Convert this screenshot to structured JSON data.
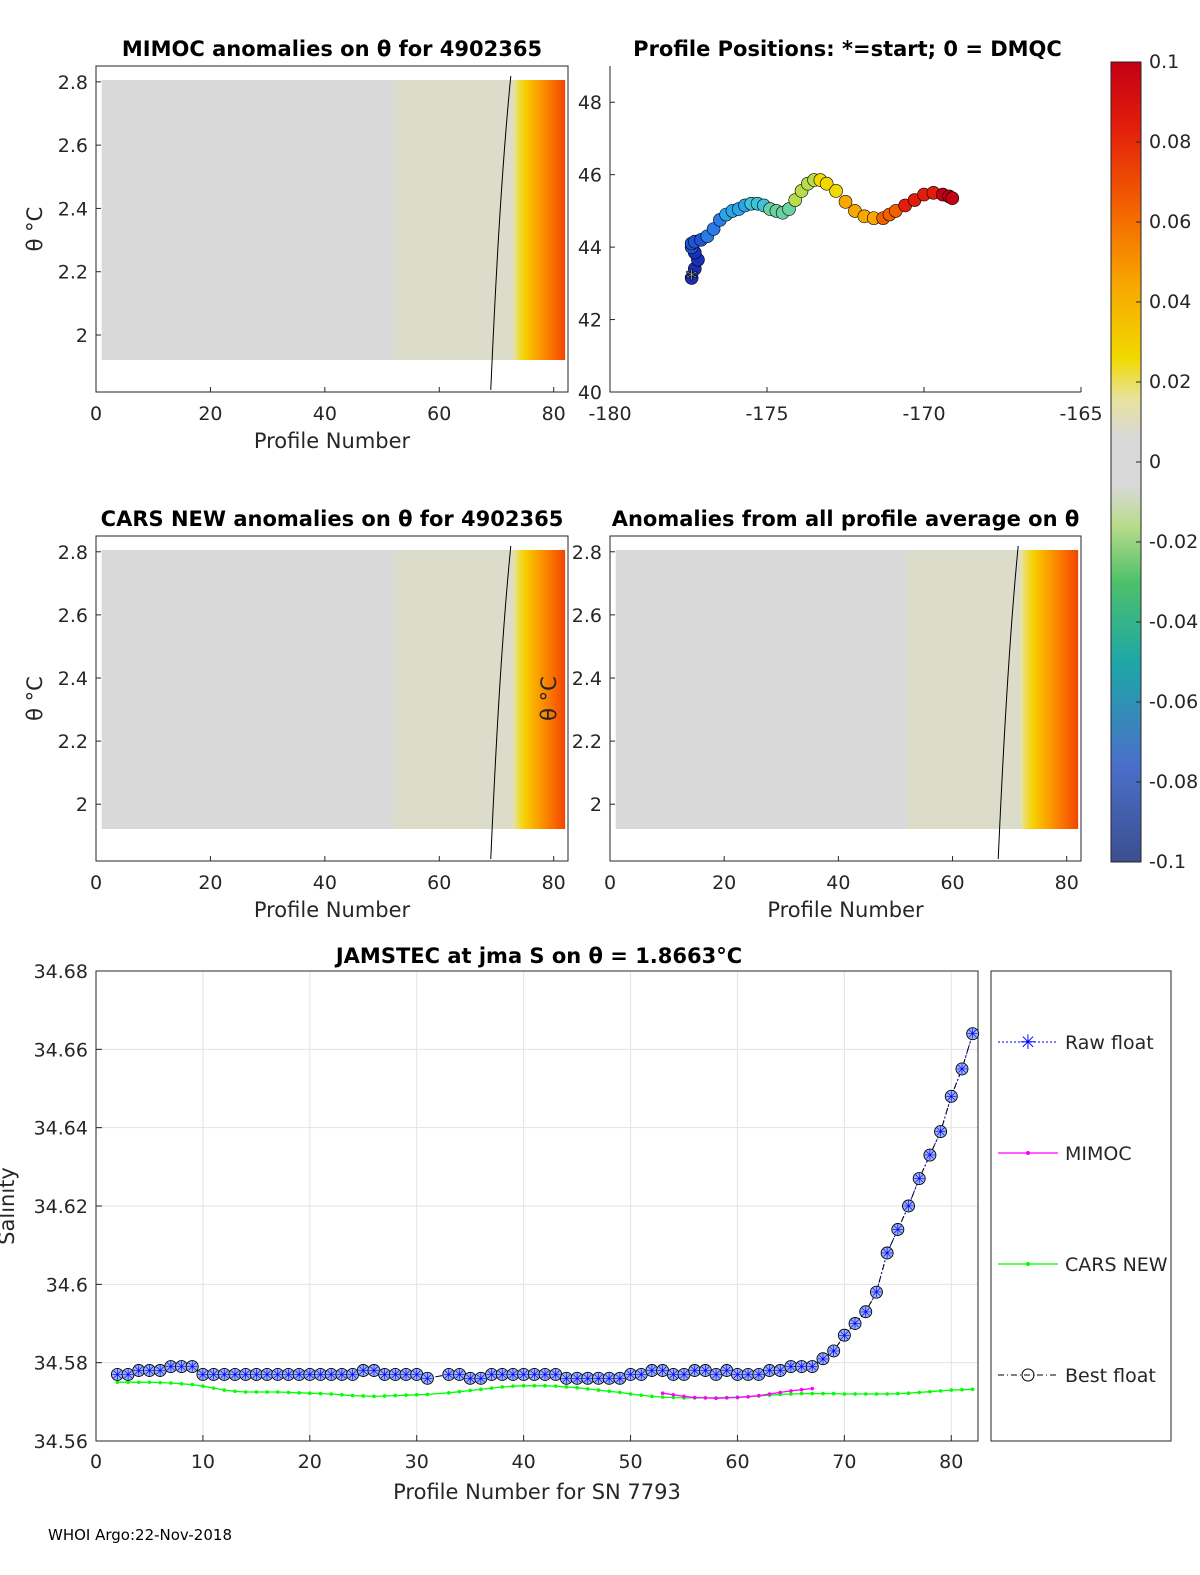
{
  "footer": "WHOI Argo:22-Nov-2018",
  "colors": {
    "raw": "#0000ff",
    "mimoc": "#ff00ff",
    "cars": "#00ff00",
    "best": "#000000",
    "field_gray": "#d9d9d9"
  },
  "chart_data": [
    {
      "id": "mimoc",
      "type": "heatmap",
      "title": "MIMOC anomalies on θ  for 4902365",
      "xlabel": "Profile Number",
      "ylabel": "θ °C",
      "xlim": [
        0,
        82.5
      ],
      "ylim": [
        1.82,
        2.85
      ],
      "xticks": [
        "0",
        "20",
        "40",
        "60",
        "80"
      ],
      "yticks": [
        "2",
        "2.2",
        "2.4",
        "2.6",
        "2.8"
      ],
      "gradient_start_profile": 73
    },
    {
      "id": "positions",
      "type": "scatter",
      "title": "Profile Positions: *=start; 0 = DMQC",
      "xlim": [
        -180,
        -165
      ],
      "ylim": [
        40,
        49
      ],
      "xticks": [
        "-180",
        "-175",
        "-170",
        "-165"
      ],
      "yticks": [
        "40",
        "42",
        "44",
        "46",
        "48"
      ],
      "lon": [
        -177.4,
        -177.3,
        -177.2,
        -177.3,
        -177.4,
        -177.4,
        -177.3,
        -177.1,
        -176.9,
        -176.7,
        -176.5,
        -176.3,
        -176.1,
        -175.9,
        -175.7,
        -175.5,
        -175.3,
        -175.1,
        -174.9,
        -174.7,
        -174.5,
        -174.3,
        -174.1,
        -173.9,
        -173.7,
        -173.5,
        -173.3,
        -173.1,
        -172.8,
        -172.5,
        -172.2,
        -171.9,
        -171.6,
        -171.3,
        -171.1,
        -170.9,
        -170.6,
        -170.3,
        -170.0,
        -169.7,
        -169.4,
        -169.2,
        -169.1
      ],
      "lat": [
        43.15,
        43.4,
        43.65,
        43.85,
        44.0,
        44.1,
        44.15,
        44.2,
        44.3,
        44.5,
        44.75,
        44.9,
        45.0,
        45.05,
        45.15,
        45.2,
        45.2,
        45.15,
        45.05,
        45.0,
        44.95,
        45.05,
        45.3,
        45.55,
        45.75,
        45.85,
        45.85,
        45.75,
        45.55,
        45.25,
        45.0,
        44.85,
        44.8,
        44.8,
        44.9,
        45.0,
        45.15,
        45.3,
        45.45,
        45.5,
        45.45,
        45.4,
        45.35
      ],
      "start_marker": "*"
    },
    {
      "id": "cars",
      "type": "heatmap",
      "title": "CARS NEW anomalies on θ for 4902365",
      "xlabel": "Profile Number",
      "ylabel": "θ °C",
      "xlim": [
        0,
        82.5
      ],
      "ylim": [
        1.82,
        2.85
      ],
      "xticks": [
        "0",
        "20",
        "40",
        "60",
        "80"
      ],
      "yticks": [
        "2",
        "2.2",
        "2.4",
        "2.6",
        "2.8"
      ],
      "gradient_start_profile": 73
    },
    {
      "id": "allavg",
      "type": "heatmap",
      "title": "Anomalies from all profile average on θ",
      "xlabel": "Profile Number",
      "ylabel": "θ °C",
      "xlim": [
        0,
        82.5
      ],
      "ylim": [
        1.82,
        2.85
      ],
      "xticks": [
        "0",
        "20",
        "40",
        "60",
        "80"
      ],
      "yticks": [
        "2",
        "2.2",
        "2.4",
        "2.6",
        "2.8"
      ],
      "gradient_start_profile": 72
    },
    {
      "id": "colorbar",
      "type": "colorbar",
      "range": [
        -0.1,
        0.1
      ],
      "ticks": [
        "0.1",
        "0.08",
        "0.06",
        "0.04",
        "0.02",
        "0",
        "-0.02",
        "-0.04",
        "-0.06",
        "-0.08",
        "-0.1"
      ],
      "tick_values": [
        0.1,
        0.08,
        0.06,
        0.04,
        0.02,
        0,
        -0.02,
        -0.04,
        -0.06,
        -0.08,
        -0.1
      ]
    },
    {
      "id": "salinity",
      "type": "line",
      "title": "JAMSTEC at jma S on θ = 1.8663°C",
      "xlabel": "Profile Number for SN 7793",
      "ylabel": "Salinity",
      "xlim": [
        0,
        82.5
      ],
      "ylim": [
        34.56,
        34.68
      ],
      "xticks": [
        "0",
        "10",
        "20",
        "30",
        "40",
        "50",
        "60",
        "70",
        "80"
      ],
      "yticks": [
        "34.56",
        "34.58",
        "34.6",
        "34.62",
        "34.64",
        "34.66",
        "34.68"
      ],
      "grid": true,
      "legend": [
        "Raw float",
        "MIMOC",
        "CARS NEW",
        "Best float"
      ],
      "legend_position": "outside-right",
      "x": [
        2,
        3,
        4,
        5,
        6,
        7,
        8,
        9,
        10,
        11,
        12,
        13,
        14,
        15,
        16,
        17,
        18,
        19,
        20,
        21,
        22,
        23,
        24,
        25,
        26,
        27,
        28,
        29,
        30,
        31,
        33,
        34,
        35,
        36,
        37,
        38,
        39,
        40,
        41,
        42,
        43,
        44,
        45,
        46,
        47,
        48,
        49,
        50,
        51,
        52,
        53,
        54,
        55,
        56,
        57,
        58,
        59,
        60,
        61,
        62,
        63,
        64,
        65,
        66,
        67,
        68,
        69,
        70,
        71,
        72,
        73,
        74,
        75,
        76,
        77,
        78,
        79,
        80,
        81,
        82
      ],
      "series": [
        {
          "name": "Raw float",
          "values": [
            34.577,
            34.577,
            34.578,
            34.578,
            34.578,
            34.579,
            34.579,
            34.579,
            34.577,
            34.577,
            34.577,
            34.577,
            34.577,
            34.577,
            34.577,
            34.577,
            34.577,
            34.577,
            34.577,
            34.577,
            34.577,
            34.577,
            34.577,
            34.578,
            34.578,
            34.577,
            34.577,
            34.577,
            34.577,
            34.576,
            34.577,
            34.577,
            34.576,
            34.576,
            34.577,
            34.577,
            34.577,
            34.577,
            34.577,
            34.577,
            34.577,
            34.576,
            34.576,
            34.576,
            34.576,
            34.576,
            34.576,
            34.577,
            34.577,
            34.578,
            34.578,
            34.577,
            34.577,
            34.578,
            34.578,
            34.577,
            34.578,
            34.577,
            34.577,
            34.577,
            34.578,
            34.578,
            34.579,
            34.579,
            34.579,
            34.581,
            34.583,
            34.587,
            34.59,
            34.593,
            34.598,
            34.608,
            34.614,
            34.62,
            34.627,
            34.633,
            34.639,
            34.648,
            34.655,
            34.664
          ]
        },
        {
          "name": "Best float",
          "values": [
            34.577,
            34.577,
            34.578,
            34.578,
            34.578,
            34.579,
            34.579,
            34.579,
            34.577,
            34.577,
            34.577,
            34.577,
            34.577,
            34.577,
            34.577,
            34.577,
            34.577,
            34.577,
            34.577,
            34.577,
            34.577,
            34.577,
            34.577,
            34.578,
            34.578,
            34.577,
            34.577,
            34.577,
            34.577,
            34.576,
            34.577,
            34.577,
            34.576,
            34.576,
            34.577,
            34.577,
            34.577,
            34.577,
            34.577,
            34.577,
            34.577,
            34.576,
            34.576,
            34.576,
            34.576,
            34.576,
            34.576,
            34.577,
            34.577,
            34.578,
            34.578,
            34.577,
            34.577,
            34.578,
            34.578,
            34.577,
            34.578,
            34.577,
            34.577,
            34.577,
            34.578,
            34.578,
            34.579,
            34.579,
            34.579,
            34.581,
            34.583,
            34.587,
            34.59,
            34.593,
            34.598,
            34.608,
            34.614,
            34.62,
            34.627,
            34.633,
            34.639,
            34.648,
            34.655,
            34.664
          ]
        },
        {
          "name": "MIMOC",
          "x": [
            53,
            54,
            55,
            56,
            57,
            58,
            59,
            60,
            61,
            62,
            63,
            64,
            65,
            66,
            67
          ],
          "values": [
            34.5722,
            34.5718,
            34.5714,
            34.5711,
            34.571,
            34.5709,
            34.571,
            34.5711,
            34.5713,
            34.5716,
            34.572,
            34.5724,
            34.5728,
            34.5731,
            34.5734
          ]
        },
        {
          "name": "CARS NEW",
          "values": [
            34.575,
            34.575,
            34.575,
            34.575,
            34.5749,
            34.5748,
            34.5746,
            34.5744,
            34.574,
            34.5735,
            34.573,
            34.5727,
            34.5725,
            34.5725,
            34.5725,
            34.5725,
            34.5724,
            34.5723,
            34.5722,
            34.5721,
            34.572,
            34.5718,
            34.5716,
            34.5715,
            34.5714,
            34.5715,
            34.5716,
            34.5717,
            34.5718,
            34.5719,
            34.5723,
            34.5726,
            34.5729,
            34.5732,
            34.5735,
            34.5738,
            34.574,
            34.5741,
            34.5741,
            34.5741,
            34.574,
            34.5738,
            34.5736,
            34.5733,
            34.573,
            34.5727,
            34.5724,
            34.572,
            34.5717,
            34.5714,
            34.5712,
            34.5711,
            34.571,
            34.571,
            34.571,
            34.571,
            34.5711,
            34.5712,
            34.5713,
            34.5715,
            34.5717,
            34.5719,
            34.572,
            34.5721,
            34.5721,
            34.5721,
            34.5721,
            34.572,
            34.572,
            34.572,
            34.572,
            34.572,
            34.5721,
            34.5722,
            34.5724,
            34.5726,
            34.5728,
            34.573,
            34.5731,
            34.5732
          ]
        }
      ]
    }
  ]
}
